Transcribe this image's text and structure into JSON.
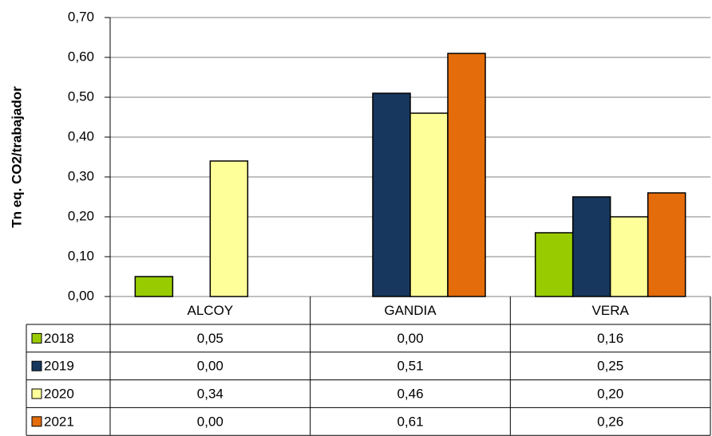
{
  "chart_data": {
    "type": "bar",
    "y_label": "Tn eq. CO2/trabajador",
    "categories": [
      "ALCOY",
      "GANDIA",
      "VERA"
    ],
    "series": [
      {
        "name": "2018",
        "color": "#99cc00",
        "values": [
          0.05,
          0,
          0.16
        ],
        "value_labels": [
          "0,05",
          "0,00",
          "0,16"
        ]
      },
      {
        "name": "2019",
        "color": "#17375e",
        "values": [
          0,
          0.51,
          0.25
        ],
        "value_labels": [
          "0,00",
          "0,51",
          "0,25"
        ]
      },
      {
        "name": "2020",
        "color": "#ffff99",
        "values": [
          0.34,
          0.46,
          0.2
        ],
        "value_labels": [
          "0,34",
          "0,46",
          "0,20"
        ]
      },
      {
        "name": "2021",
        "color": "#e46c0a",
        "values": [
          0,
          0.61,
          0.26
        ],
        "value_labels": [
          "0,00",
          "0,61",
          "0,26"
        ]
      }
    ],
    "ylim": [
      0,
      0.7
    ],
    "yticks": [
      {
        "value": 0,
        "label": "0,00"
      },
      {
        "value": 0.1,
        "label": "0,10"
      },
      {
        "value": 0.2,
        "label": "0,20"
      },
      {
        "value": 0.3,
        "label": "0,30"
      },
      {
        "value": 0.4,
        "label": "0,40"
      },
      {
        "value": 0.5,
        "label": "0,50"
      },
      {
        "value": 0.6,
        "label": "0,60"
      },
      {
        "value": 0.7,
        "label": "0,70"
      }
    ],
    "grid": true
  }
}
